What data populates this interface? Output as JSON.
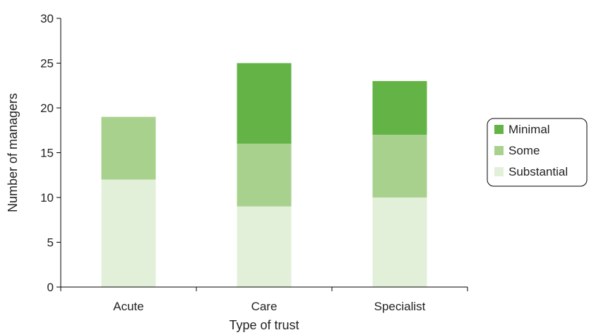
{
  "chart_data": {
    "type": "bar",
    "stacked": true,
    "categories": [
      "Acute",
      "Care",
      "Specialist"
    ],
    "series": [
      {
        "name": "Substantial",
        "values": [
          12,
          9,
          10
        ],
        "color": "#e2f0d9"
      },
      {
        "name": "Some",
        "values": [
          7,
          7,
          7
        ],
        "color": "#a9d18e"
      },
      {
        "name": "Minimal",
        "values": [
          0,
          9,
          6
        ],
        "color": "#63b346"
      }
    ],
    "legend_order": [
      "Minimal",
      "Some",
      "Substantial"
    ],
    "xlabel": "Type of trust",
    "ylabel": "Number of managers",
    "ylim": [
      0,
      30
    ],
    "yticks": [
      0,
      5,
      10,
      15,
      20,
      25,
      30
    ],
    "grid": false,
    "legend_position": "right"
  }
}
